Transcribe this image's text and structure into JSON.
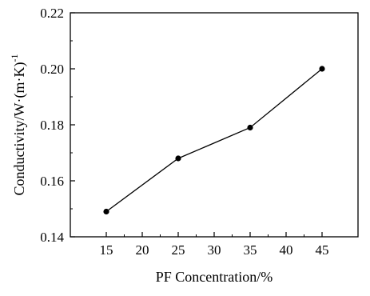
{
  "chart_data": {
    "type": "line",
    "x": [
      15,
      25,
      35,
      45
    ],
    "series": [
      {
        "values": [
          0.149,
          0.168,
          0.179,
          0.2
        ]
      }
    ],
    "xlabel": "PF Concentration/%",
    "ylabel_main": "Conductivity/W·(m·K)",
    "ylabel_sup": "-1",
    "xlim": [
      10,
      50
    ],
    "ylim": [
      0.14,
      0.22
    ],
    "xticks": [
      "15",
      "20",
      "25",
      "30",
      "35",
      "40",
      "45"
    ],
    "yticks": [
      "0.14",
      "0.16",
      "0.18",
      "0.20",
      "0.22"
    ],
    "xtick_values": [
      15,
      20,
      25,
      30,
      35,
      40,
      45
    ],
    "ytick_values": [
      0.14,
      0.16,
      0.18,
      0.2,
      0.22
    ],
    "grid": false,
    "marker": "filled-circle",
    "line_color": "#000000"
  }
}
